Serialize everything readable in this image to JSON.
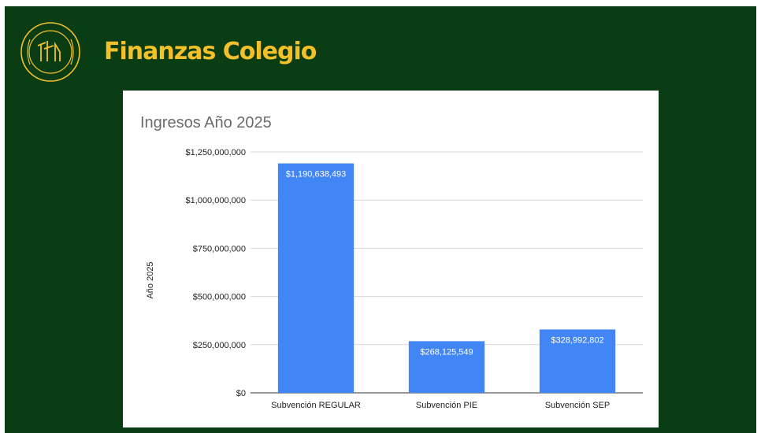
{
  "header": {
    "title": "Finanzas Colegio",
    "logo_icon": "school-crest-icon",
    "logo_color": "#f3c02a"
  },
  "colors": {
    "background": "#0b3d14",
    "title": "#f3c02a",
    "bar": "#4285f4",
    "grid": "#d9d9d9"
  },
  "chart_data": {
    "type": "bar",
    "title": "Ingresos Año 2025",
    "xlabel": "",
    "ylabel": "Año 2025",
    "categories": [
      "Subvención REGULAR",
      "Subvención PIE",
      "Subvención SEP"
    ],
    "series": [
      {
        "values": [
          1190638493,
          268125549,
          328992802
        ],
        "labels": [
          "$1,190,638,493",
          "$268,125,549",
          "$328,992,802"
        ]
      }
    ],
    "ylim": [
      0,
      1250000000
    ],
    "yticks": [
      0,
      250000000,
      500000000,
      750000000,
      1000000000,
      1250000000
    ],
    "ytick_labels": [
      "$0",
      "$250,000,000",
      "$500,000,000",
      "$750,000,000",
      "$1,000,000,000",
      "$1,250,000,000"
    ],
    "grid": true,
    "legend": "none"
  }
}
